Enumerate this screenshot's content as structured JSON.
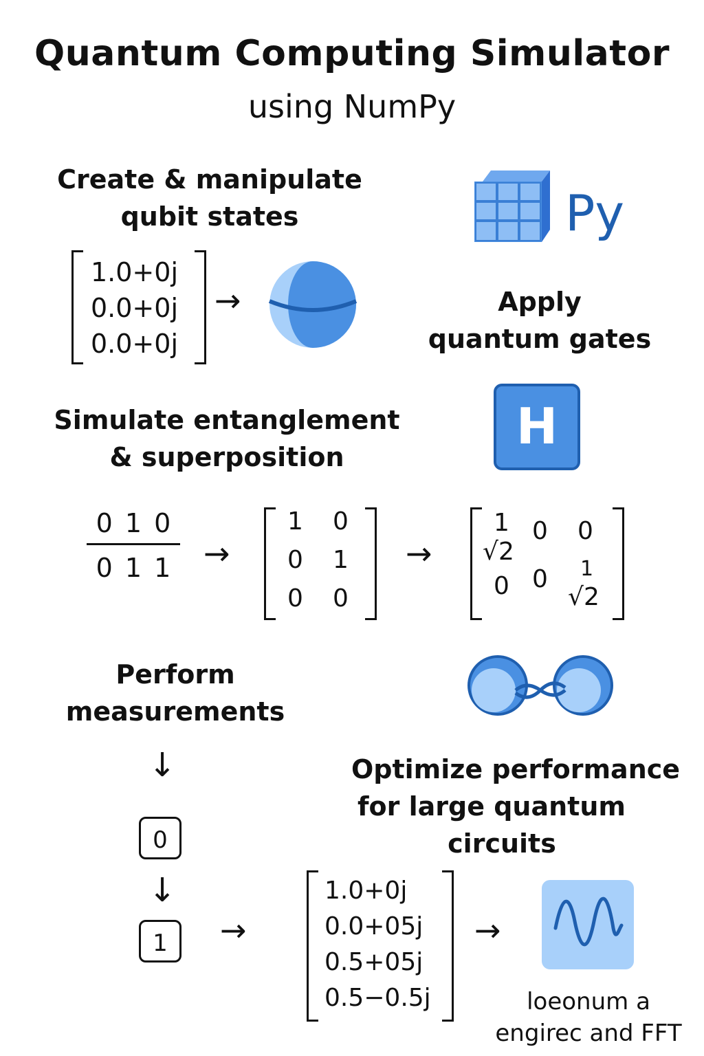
{
  "header": {
    "title": "Quantum Computing Simulator",
    "subtitle": "using NumPy"
  },
  "sections": {
    "create": {
      "line1": "Create & manipulate",
      "line2": "qubit states"
    },
    "apply": {
      "line1": "Apply",
      "line2": "quantum gates"
    },
    "simulate": {
      "line1": "Simulate entanglement",
      "line2": "& superposition"
    },
    "measure": {
      "line1": "Perform",
      "line2": "measurements"
    },
    "optimize": {
      "line1": "Optimize performance",
      "line2": "for large quantum",
      "line3": "circuits"
    }
  },
  "logo": {
    "text": "Py"
  },
  "gate": {
    "label": "H"
  },
  "state_vector": [
    "1.0+0j",
    "0.0+0j",
    "0.0+0j"
  ],
  "fraction": {
    "top": "0 1 0",
    "bottom": "0 1 1"
  },
  "matrix1": [
    [
      "1",
      "0"
    ],
    [
      "0",
      "1"
    ],
    [
      "0",
      "0"
    ]
  ],
  "matrix2": {
    "r1": [
      "1",
      "√2",
      "0",
      "0"
    ],
    "r2": [
      "0",
      "0",
      "1",
      "√2"
    ]
  },
  "measure_bits": [
    "0",
    "1"
  ],
  "result_vector": [
    "1.0+0j",
    "0.0+05j",
    "0.5+05j",
    "0.5−0.5j"
  ],
  "caption": {
    "line1": "loeonum a",
    "line2": "engirec and FFT"
  },
  "arrow": "→",
  "down_arrow": "↓",
  "colors": {
    "blue": "#4A90E2",
    "light_blue": "#A8D0FA",
    "dark_blue": "#1F5FAF"
  }
}
